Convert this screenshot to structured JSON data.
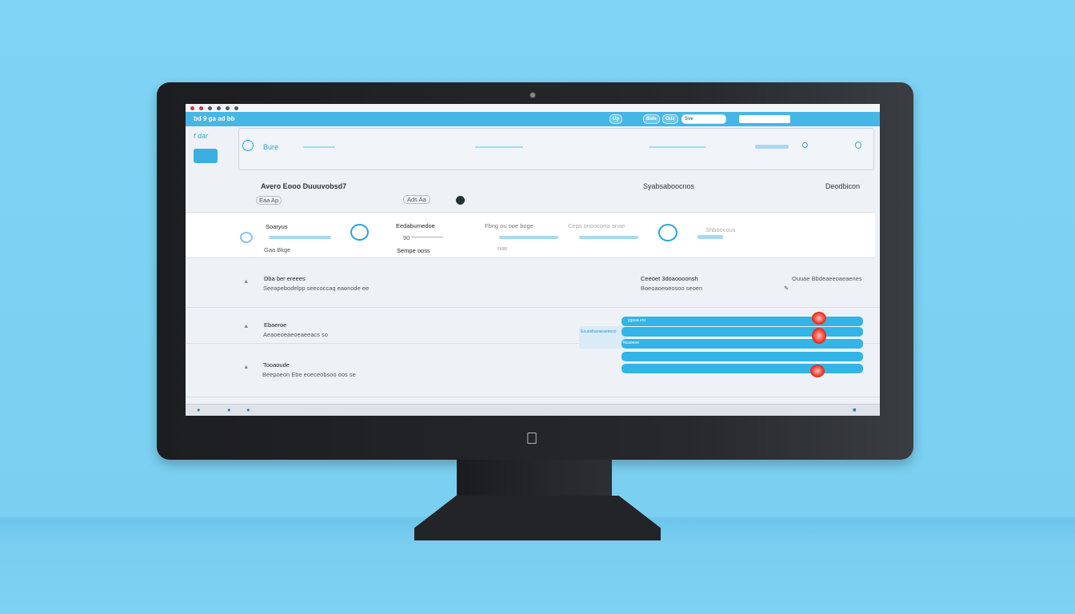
{
  "window": {
    "toolbar_text": "bd 9 ga ad bb",
    "toolbar_buttons": [
      "Up",
      "Bids",
      "Ode"
    ],
    "search_value": "Sve"
  },
  "sidebar": {
    "brand": "f dar"
  },
  "search_panel": {
    "label": "Bure"
  },
  "header": {
    "title": "Avero Eooo Duuuvobsd7",
    "tag": "Eaa Ap",
    "badge": "Ads Aa",
    "col2": "Syabsaboocnos",
    "col3": "Deodbicon"
  },
  "cards": [
    {
      "title": "Soaryus",
      "caption": "Gaa Bkge"
    },
    {
      "title": "Eedabumedoe",
      "caption": "Sempe ooss",
      "value": "90"
    },
    {
      "title": "Fbng ou ooe boge",
      "value": "ruw"
    },
    {
      "title": "Ceps onoocona anae"
    },
    {
      "title": "Shboocous"
    }
  ],
  "list": [
    {
      "title": "Dba ber ereees",
      "subtitle": "Seeapebodelpp seecoccaq eaonode ee",
      "col2_title": "Ceeoet 3doaoooonsh",
      "col2_sub": "Boeoaoeoeosoo seoen",
      "col3_title": "Ouuae Bbdeaeeoaeaenes"
    },
    {
      "title": "Ebaeroe",
      "subtitle": "Aeaoeoeaeoeaeeacs so"
    },
    {
      "title": "Tooaoude",
      "subtitle": "Beepoeon Ebe eoeceobsoo oos se"
    }
  ],
  "bars": {
    "labels": [
      "ygoaa enr",
      "Eeuesbaoaeaeeeso",
      "Ncaoeoe"
    ],
    "accent": "#33b4e6",
    "marker": "#e3321f"
  },
  "colors": {
    "toolbar": "#46b6e4",
    "background": "#7fd3f4"
  }
}
